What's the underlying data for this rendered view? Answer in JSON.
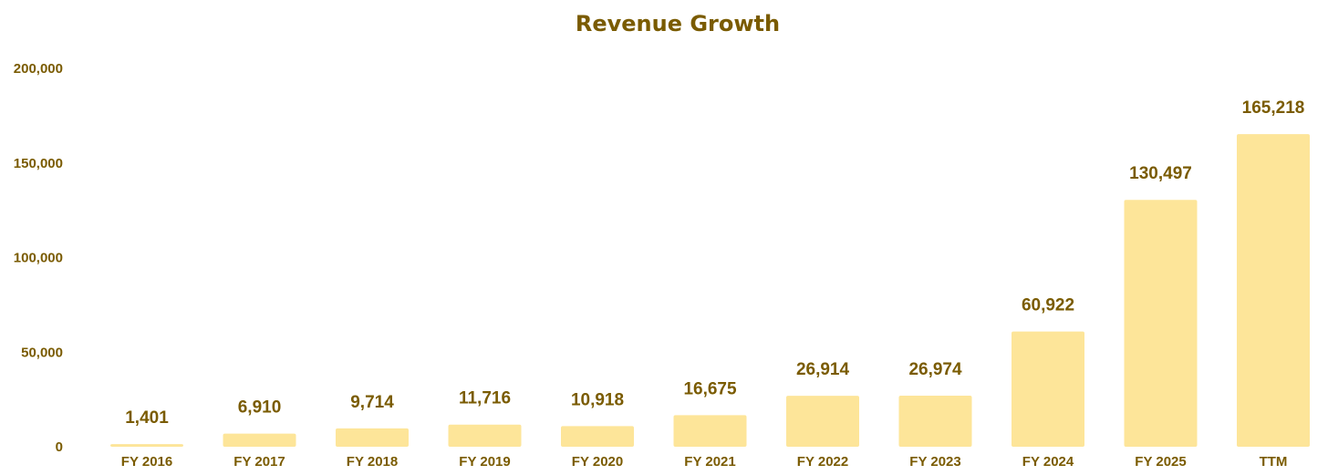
{
  "colors": {
    "bar": "#FDE599",
    "text": "#7A5B00"
  },
  "chart_data": {
    "type": "bar",
    "title": "Revenue Growth",
    "xlabel": "",
    "ylabel": "",
    "categories": [
      "FY 2016",
      "FY 2017",
      "FY 2018",
      "FY 2019",
      "FY 2020",
      "FY 2021",
      "FY 2022",
      "FY 2023",
      "FY 2024",
      "FY 2025",
      "TTM"
    ],
    "values": [
      1401,
      6910,
      9714,
      11716,
      10918,
      16675,
      26914,
      26974,
      60922,
      130497,
      165218
    ],
    "data_labels": [
      "1,401",
      "6,910",
      "9,714",
      "11,716",
      "10,918",
      "16,675",
      "26,914",
      "26,974",
      "60,922",
      "130,497",
      "165,218"
    ],
    "ylim": [
      0,
      200000
    ],
    "yticks": [
      0,
      50000,
      100000,
      150000,
      200000
    ],
    "ytick_labels": [
      "0",
      "50,000",
      "100,000",
      "150,000",
      "200,000"
    ],
    "grid": false,
    "legend": "none"
  }
}
